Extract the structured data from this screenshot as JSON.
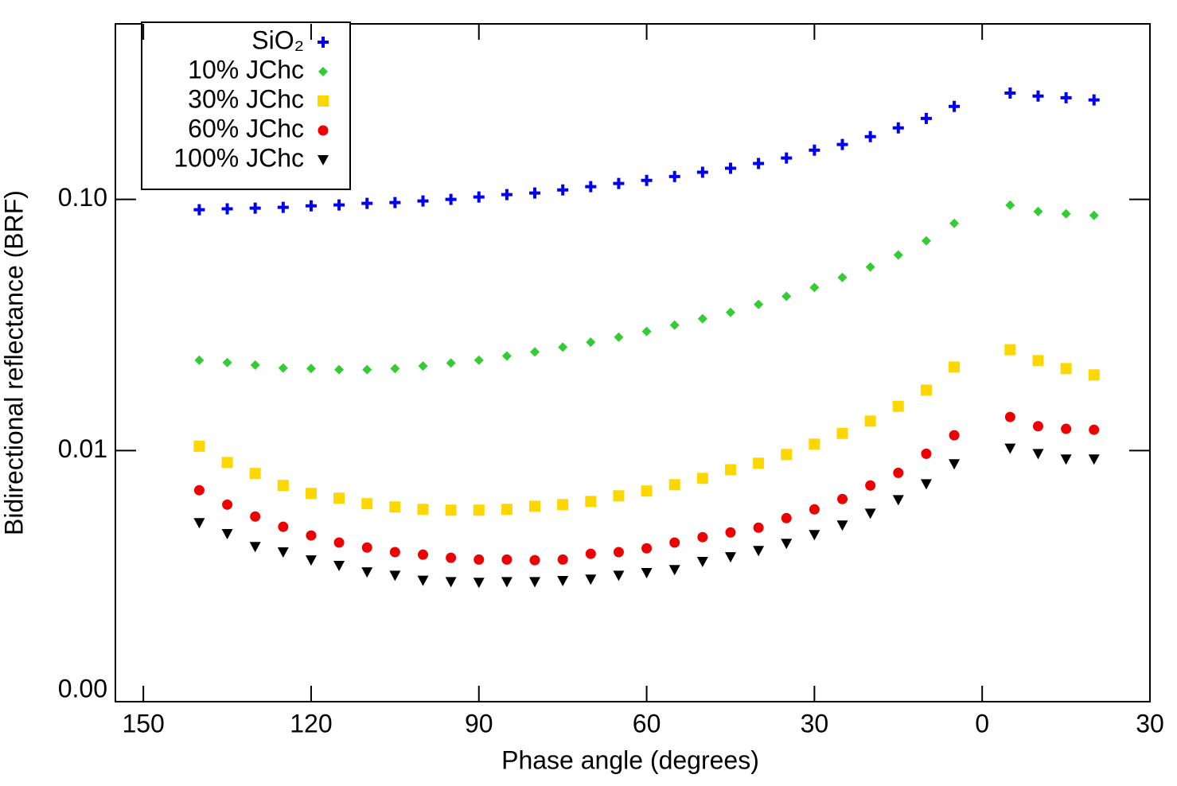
{
  "chart_data": {
    "type": "scatter",
    "x_label": "Phase angle (degrees)",
    "y_label": "Bidirectional reflectance (BRF)",
    "log_y": true,
    "legend": "upper left",
    "xlim": [
      155,
      -30
    ],
    "xticks": [
      150,
      120,
      90,
      60,
      30,
      0,
      {
        "value": -30,
        "label": "30"
      }
    ],
    "ylim": [
      0.001,
      0.5
    ],
    "yticks": [
      {
        "value": 0.001,
        "label": "0.00"
      },
      {
        "value": 0.01,
        "label": "0.01"
      },
      {
        "value": 0.1,
        "label": "0.10"
      }
    ],
    "x": [
      140,
      135,
      130,
      125,
      120,
      115,
      110,
      105,
      100,
      95,
      90,
      85,
      80,
      75,
      70,
      65,
      60,
      55,
      50,
      45,
      40,
      35,
      30,
      25,
      20,
      15,
      10,
      5,
      -5,
      -10,
      -15,
      -20
    ],
    "series": [
      {
        "name": "SiO₂",
        "color": "#0000ee",
        "marker": "plus",
        "values": [
          0.091,
          0.0917,
          0.0923,
          0.093,
          0.0943,
          0.095,
          0.0964,
          0.0971,
          0.0986,
          0.1,
          0.1022,
          0.1045,
          0.106,
          0.1091,
          0.1124,
          0.1157,
          0.119,
          0.1234,
          0.1283,
          0.1331,
          0.139,
          0.1462,
          0.1571,
          0.1654,
          0.1778,
          0.1927,
          0.2101,
          0.2345,
          0.265,
          0.258,
          0.254,
          0.249
        ]
      },
      {
        "name": "10% JChc",
        "color": "#33cc33",
        "marker": "diamond",
        "values": [
          0.0229,
          0.0224,
          0.0219,
          0.0213,
          0.0212,
          0.021,
          0.021,
          0.0212,
          0.0217,
          0.0223,
          0.0229,
          0.0238,
          0.0247,
          0.0258,
          0.027,
          0.0283,
          0.0298,
          0.0316,
          0.0335,
          0.0355,
          0.0382,
          0.0411,
          0.0446,
          0.0489,
          0.0538,
          0.0601,
          0.0684,
          0.0803,
          0.0949,
          0.0895,
          0.0876,
          0.0864
        ]
      },
      {
        "name": "30% JChc",
        "color": "#ffd700",
        "marker": "square",
        "values": [
          0.0104,
          0.00896,
          0.0081,
          0.00726,
          0.00675,
          0.00646,
          0.00614,
          0.00596,
          0.00583,
          0.00579,
          0.00579,
          0.00583,
          0.006,
          0.00609,
          0.00627,
          0.0066,
          0.0069,
          0.00731,
          0.00775,
          0.00839,
          0.0089,
          0.00964,
          0.0106,
          0.0117,
          0.0131,
          0.015,
          0.0174,
          0.0215,
          0.0252,
          0.0228,
          0.0212,
          0.02
        ]
      },
      {
        "name": "60% JChc",
        "color": "#ee0000",
        "marker": "circle",
        "values": [
          0.00695,
          0.00609,
          0.00546,
          0.00497,
          0.00459,
          0.0043,
          0.00411,
          0.00394,
          0.00385,
          0.00374,
          0.00368,
          0.00368,
          0.00366,
          0.00368,
          0.00388,
          0.00394,
          0.00408,
          0.0043,
          0.00452,
          0.00472,
          0.00493,
          0.00538,
          0.00583,
          0.00641,
          0.00726,
          0.00815,
          0.00971,
          0.0115,
          0.0136,
          0.0125,
          0.0122,
          0.0121
        ]
      },
      {
        "name": "100% JChc",
        "color": "#000000",
        "marker": "triangle-down",
        "values": [
          0.00515,
          0.00466,
          0.00414,
          0.00394,
          0.00366,
          0.00348,
          0.00328,
          0.00318,
          0.00304,
          0.003,
          0.00298,
          0.003,
          0.003,
          0.00303,
          0.00307,
          0.00318,
          0.00326,
          0.00335,
          0.00361,
          0.00377,
          0.00399,
          0.00426,
          0.00462,
          0.00504,
          0.00562,
          0.00636,
          0.00736,
          0.00884,
          0.0102,
          0.00971,
          0.00923,
          0.00923
        ]
      }
    ]
  }
}
